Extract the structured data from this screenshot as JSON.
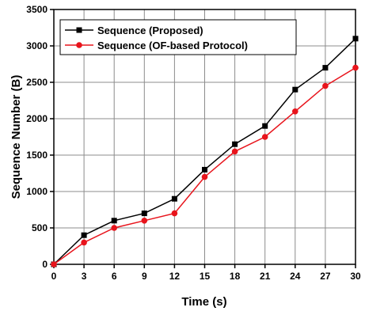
{
  "chart_data": {
    "type": "line",
    "title": "",
    "xlabel": "Time (s)",
    "ylabel": "Sequence Number (B)",
    "xlim": [
      0,
      30
    ],
    "ylim": [
      0,
      3500
    ],
    "x_ticks": [
      0,
      3,
      6,
      9,
      12,
      15,
      18,
      21,
      24,
      27,
      30
    ],
    "y_ticks": [
      0,
      500,
      1000,
      1500,
      2000,
      2500,
      3000,
      3500
    ],
    "grid": true,
    "legend_position": "top-left",
    "x": [
      0,
      3,
      6,
      9,
      12,
      15,
      18,
      21,
      24,
      27,
      30
    ],
    "series": [
      {
        "name": "Sequence (Proposed)",
        "color": "#000000",
        "marker": "square",
        "values": [
          0,
          400,
          600,
          700,
          900,
          1300,
          1650,
          1900,
          2400,
          2700,
          3100
        ]
      },
      {
        "name": "Sequence (OF-based Protocol)",
        "color": "#e8141c",
        "marker": "circle",
        "values": [
          0,
          300,
          500,
          600,
          700,
          1200,
          1550,
          1750,
          2100,
          2450,
          2700
        ]
      }
    ]
  }
}
